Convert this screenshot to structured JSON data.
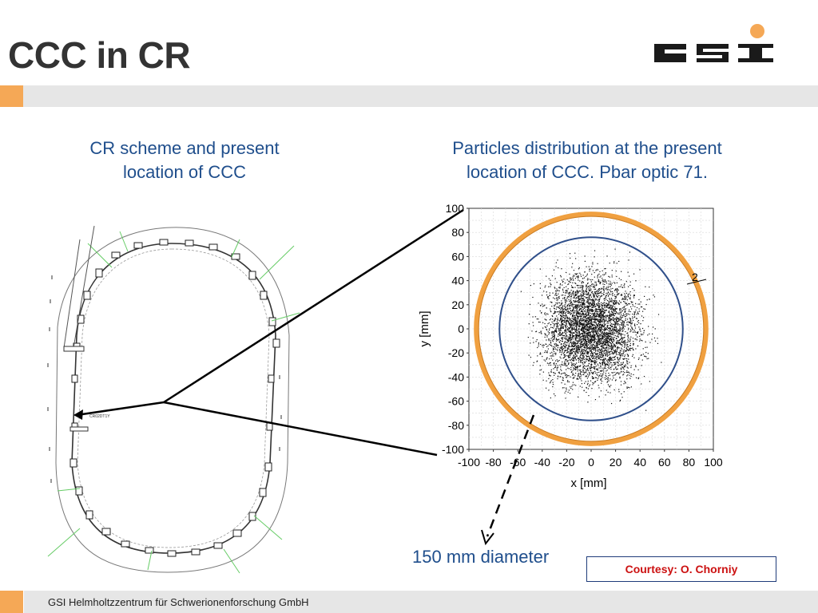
{
  "slide": {
    "title": "CCC in CR",
    "logo_text": "GSI",
    "left_caption_line1": "CR scheme and present",
    "left_caption_line2": "location of CCC",
    "right_caption_line1": "Particles distribution at the present",
    "right_caption_line2": "location of CCC. Pbar optic 71.",
    "ring_marker_label": "CR02DT1Y",
    "diameter_label": "150 mm diameter",
    "courtesy": "Courtesy: O. Chorniy",
    "footer": "GSI Helmholtzzentrum für Schwerionenforschung GmbH"
  },
  "colors": {
    "title": "#333333",
    "caption": "#1f4e8c",
    "accent_orange": "#f5a856",
    "aperture_ring": "#f0a040",
    "beam_circle": "#2f4f8a",
    "courtesy_text": "#cc1111"
  },
  "chart_data": {
    "type": "scatter",
    "xlabel": "x [mm]",
    "ylabel": "y [mm]",
    "xlim": [
      -100,
      100
    ],
    "ylim": [
      -100,
      100
    ],
    "xticks": [
      -100,
      -80,
      -60,
      -40,
      -20,
      0,
      20,
      40,
      60,
      80,
      100
    ],
    "yticks": [
      -100,
      -80,
      -60,
      -40,
      -20,
      0,
      20,
      40,
      60,
      80,
      100
    ],
    "grid": true,
    "annotation": "2",
    "distribution": {
      "x_range": [
        -60,
        60
      ],
      "y_range": [
        -70,
        70
      ],
      "density": "centered"
    },
    "circles": [
      {
        "name": "aperture",
        "center": [
          0,
          0
        ],
        "radius": 94,
        "color": "#f0a040"
      },
      {
        "name": "diameter-150mm",
        "center": [
          0,
          0
        ],
        "radius": 75,
        "color": "#2f4f8a"
      }
    ]
  }
}
